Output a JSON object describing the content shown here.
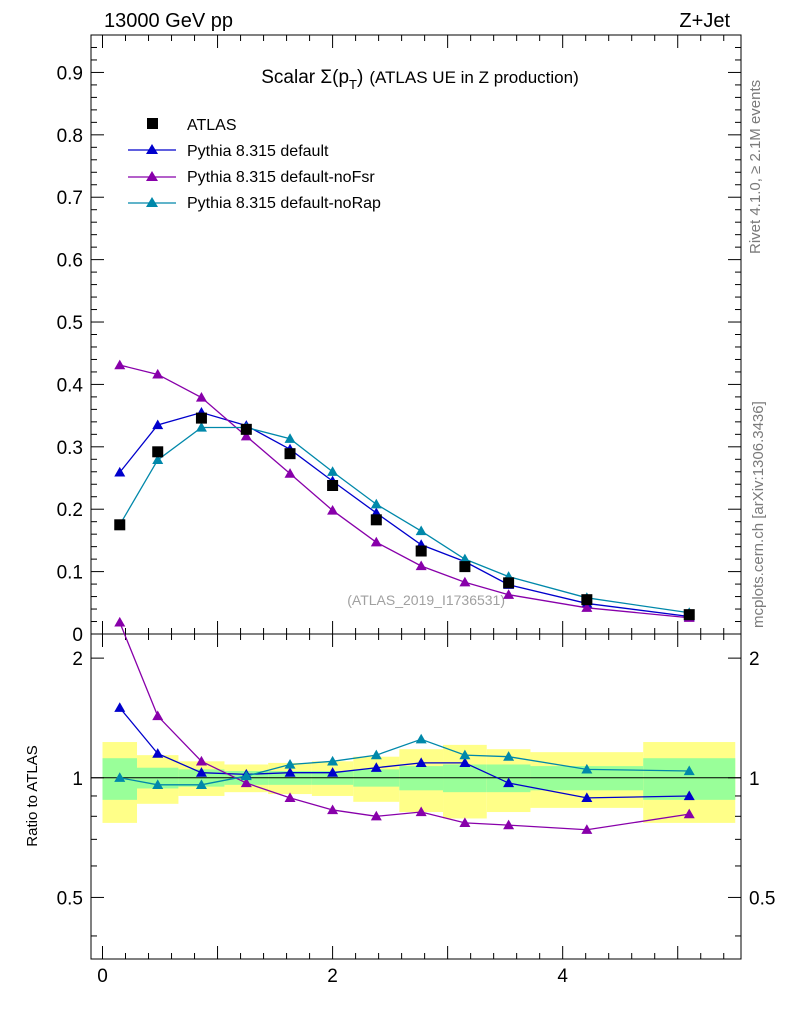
{
  "header": {
    "left": "13000 GeV pp",
    "right": "Z+Jet"
  },
  "side": {
    "rivet": "Rivet 4.1.0, ≥ 2.1M events",
    "mcplots": "mcplots.cern.ch [arXiv:1306.3436]"
  },
  "chart_data": {
    "type": "line",
    "title": "Scalar Σ(pT) (ATLAS UE in Z production)",
    "title_parts": {
      "main": "Scalar Σ(p",
      "sub": "T",
      "close": ")",
      "rest": "(ATLAS UE in Z production)"
    },
    "watermark": "(ATLAS_2019_I1736531)",
    "xlim": [
      -0.1,
      5.55
    ],
    "ylim": [
      0,
      0.96
    ],
    "ratio_ylim": [
      0.35,
      2.3
    ],
    "ylabel_ratio": "Ratio to ATLAS",
    "x_ticks": [
      0,
      2,
      4
    ],
    "x_tick_labels": [
      "0",
      "2",
      "4"
    ],
    "y_ticks": [
      0,
      0.1,
      0.2,
      0.3,
      0.4,
      0.5,
      0.6,
      0.7,
      0.8,
      0.9
    ],
    "y_tick_labels": [
      "0",
      "0.1",
      "0.2",
      "0.3",
      "0.4",
      "0.5",
      "0.6",
      "0.7",
      "0.8",
      "0.9"
    ],
    "ratio_ticks": [
      0.5,
      1,
      2
    ],
    "ratio_tick_labels": [
      "0.5",
      "1",
      "2"
    ],
    "x": [
      0.15,
      0.48,
      0.86,
      1.25,
      1.63,
      2.0,
      2.38,
      2.77,
      3.15,
      3.53,
      4.21,
      5.1
    ],
    "bin_edges": [
      0.0,
      0.3,
      0.66,
      1.06,
      1.44,
      1.82,
      2.18,
      2.58,
      2.96,
      3.34,
      3.72,
      4.7,
      5.5
    ],
    "band_inner": [
      0.12,
      0.06,
      0.05,
      0.04,
      0.04,
      0.04,
      0.05,
      0.07,
      0.08,
      0.08,
      0.07,
      0.12
    ],
    "band_outer": [
      0.23,
      0.14,
      0.1,
      0.08,
      0.09,
      0.1,
      0.13,
      0.18,
      0.21,
      0.18,
      0.16,
      0.23
    ],
    "series": [
      {
        "name": "ATLAS",
        "marker": "square",
        "color": "#000000",
        "values": [
          0.175,
          0.292,
          0.346,
          0.328,
          0.289,
          0.238,
          0.183,
          0.133,
          0.108,
          0.082,
          0.055,
          0.031
        ]
      },
      {
        "name": "Pythia 8.315 default",
        "marker": "triangle",
        "color": "#0000cc",
        "values": [
          0.259,
          0.335,
          0.355,
          0.334,
          0.296,
          0.245,
          0.194,
          0.143,
          0.116,
          0.079,
          0.049,
          0.028
        ],
        "ratio": [
          1.5,
          1.15,
          1.03,
          1.02,
          1.03,
          1.03,
          1.06,
          1.09,
          1.09,
          0.97,
          0.89,
          0.9
        ]
      },
      {
        "name": "Pythia 8.315 default-noFsr",
        "marker": "triangle",
        "color": "#8800aa",
        "values": [
          0.431,
          0.416,
          0.379,
          0.317,
          0.257,
          0.198,
          0.147,
          0.109,
          0.083,
          0.063,
          0.042,
          0.026
        ],
        "ratio": [
          2.46,
          1.43,
          1.1,
          0.97,
          0.89,
          0.83,
          0.8,
          0.82,
          0.77,
          0.76,
          0.74,
          0.81
        ]
      },
      {
        "name": "Pythia 8.315 default-noRap",
        "marker": "triangle",
        "color": "#0088aa",
        "values": [
          0.175,
          0.279,
          0.331,
          0.331,
          0.313,
          0.26,
          0.208,
          0.165,
          0.12,
          0.092,
          0.058,
          0.034
        ],
        "ratio": [
          1.0,
          0.96,
          0.96,
          1.01,
          1.08,
          1.1,
          1.14,
          1.25,
          1.14,
          1.13,
          1.05,
          1.04
        ]
      }
    ]
  }
}
